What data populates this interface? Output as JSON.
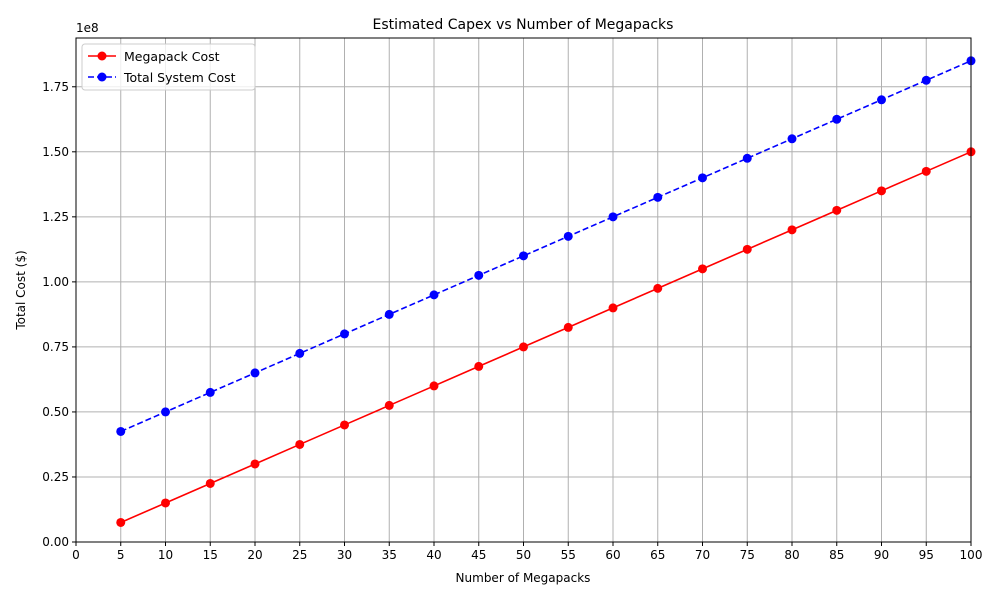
{
  "chart_data": {
    "type": "line",
    "title": "Estimated Capex vs Number of Megapacks",
    "xlabel": "Number of Megapacks",
    "ylabel": "Total Cost ($)",
    "y_offset_label": "1e8",
    "y_scale": 100000000,
    "xlim": [
      0,
      100
    ],
    "ylim": [
      0,
      193750000
    ],
    "x_ticks": [
      0,
      5,
      10,
      15,
      20,
      25,
      30,
      35,
      40,
      45,
      50,
      55,
      60,
      65,
      70,
      75,
      80,
      85,
      90,
      95,
      100
    ],
    "y_ticks": [
      0,
      25000000,
      50000000,
      75000000,
      100000000,
      125000000,
      150000000,
      175000000
    ],
    "y_tick_labels": [
      "0.00",
      "0.25",
      "0.50",
      "0.75",
      "1.00",
      "1.25",
      "1.50",
      "1.75"
    ],
    "grid": true,
    "legend_position": "top-left",
    "x": [
      5,
      10,
      15,
      20,
      25,
      30,
      35,
      40,
      45,
      50,
      55,
      60,
      65,
      70,
      75,
      80,
      85,
      90,
      95,
      100
    ],
    "series": [
      {
        "name": "Megapack Cost",
        "color": "#ff0000",
        "line_style": "solid",
        "marker": "circle",
        "values": [
          7500000,
          15000000,
          22500000,
          30000000,
          37500000,
          45000000,
          52500000,
          60000000,
          67500000,
          75000000,
          82500000,
          90000000,
          97500000,
          105000000,
          112500000,
          120000000,
          127500000,
          135000000,
          142500000,
          150000000
        ]
      },
      {
        "name": "Total System Cost",
        "color": "#0000ff",
        "line_style": "dashed",
        "marker": "circle",
        "values": [
          42500000,
          50000000,
          57500000,
          65000000,
          72500000,
          80000000,
          87500000,
          95000000,
          102500000,
          110000000,
          117500000,
          125000000,
          132500000,
          140000000,
          147500000,
          155000000,
          162500000,
          170000000,
          177500000,
          185000000
        ]
      }
    ]
  }
}
